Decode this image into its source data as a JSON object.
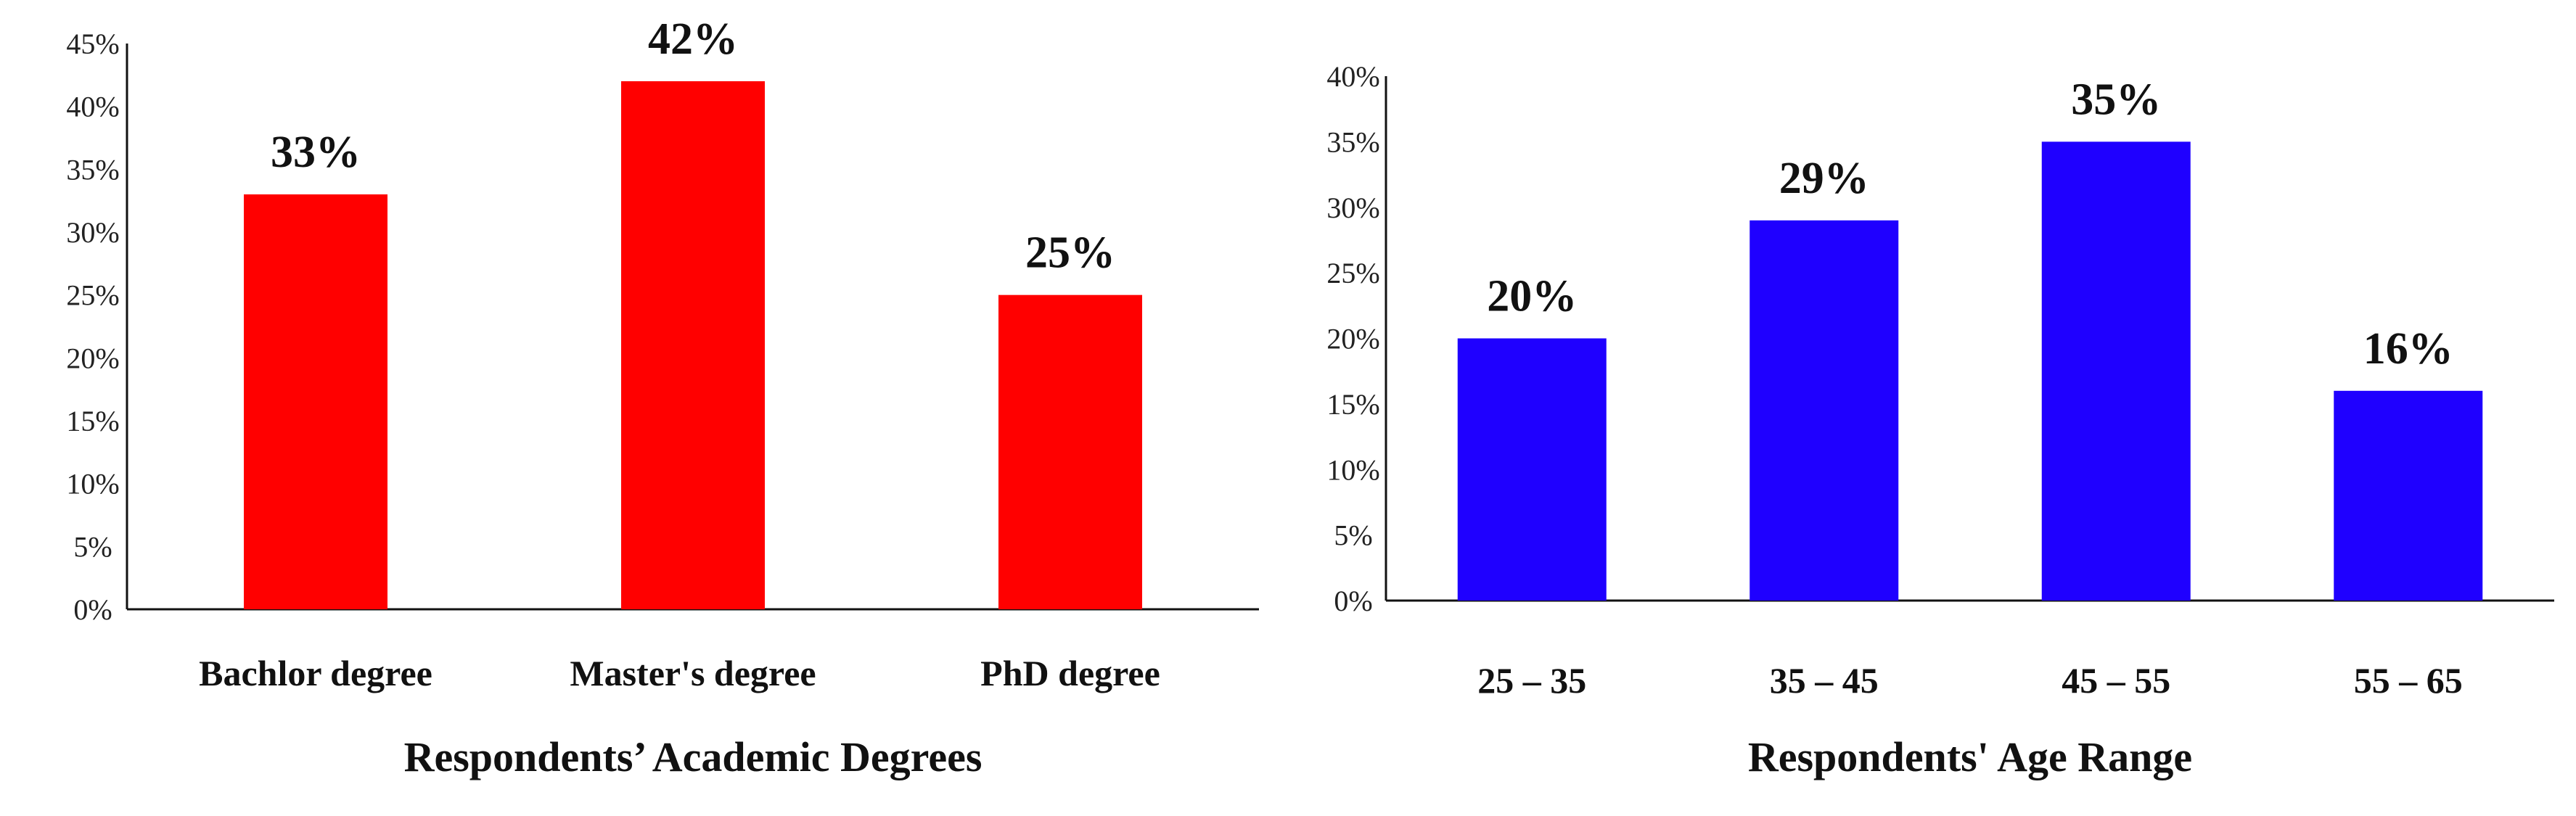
{
  "chart_data": [
    {
      "type": "bar",
      "xlabel": "Respondents’ Academic Degrees",
      "categories": [
        "Bachlor degree",
        "Master's degree",
        "PhD degree"
      ],
      "values": [
        33,
        42,
        25
      ],
      "data_labels": [
        "33%",
        "42%",
        "25%"
      ],
      "yticks": [
        "0%",
        "5%",
        "10%",
        "15%",
        "20%",
        "25%",
        "30%",
        "35%",
        "40%",
        "45%"
      ],
      "ylim": [
        0,
        45
      ],
      "color": "#ff0000",
      "grid": false
    },
    {
      "type": "bar",
      "xlabel": "Respondents' Age Range",
      "categories": [
        "25 – 35",
        "35 – 45",
        "45 – 55",
        "55 – 65"
      ],
      "values": [
        20,
        29,
        35,
        16
      ],
      "data_labels": [
        "20%",
        "29%",
        "35%",
        "16%"
      ],
      "yticks": [
        "0%",
        "5%",
        "10%",
        "15%",
        "20%",
        "25%",
        "30%",
        "35%",
        "40%"
      ],
      "ylim": [
        0,
        40
      ],
      "color": "#1f00ff",
      "grid": false
    }
  ]
}
